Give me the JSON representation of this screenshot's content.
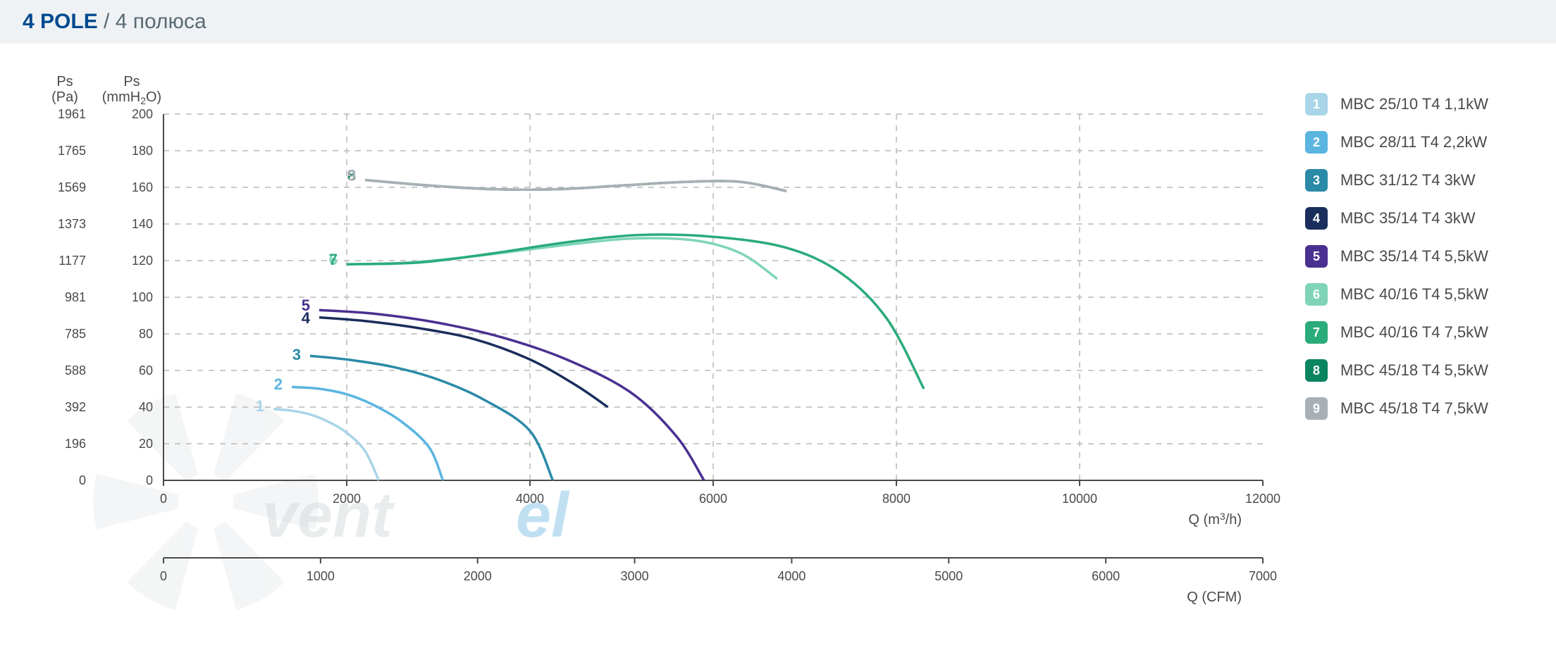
{
  "header": {
    "title_main": "4 POLE",
    "title_sub": " / 4 полюса"
  },
  "chart": {
    "type": "line",
    "background_color": "#ffffff",
    "grid_color": "#b8b8b8",
    "axis_color": "#4a4a4a",
    "label_fontsize": 18,
    "y_axis_left": {
      "title_line1": "Ps",
      "title_line2": "(Pa)",
      "ticks": [
        0,
        196,
        392,
        588,
        785,
        981,
        1177,
        1373,
        1569,
        1765,
        1961
      ]
    },
    "y_axis_right": {
      "title_line1": "Ps",
      "title_line2": "(mmH₂O)",
      "ticks": [
        0,
        20,
        40,
        60,
        80,
        100,
        120,
        140,
        160,
        180,
        200
      ]
    },
    "x_axis_primary": {
      "title": "Q (m³/h)",
      "min": 0,
      "max": 12000,
      "ticks": [
        0,
        2000,
        4000,
        6000,
        8000,
        10000,
        12000
      ]
    },
    "x_axis_secondary": {
      "title": "Q (CFM)",
      "min": 0,
      "max": 7000,
      "ticks": [
        0,
        1000,
        2000,
        3000,
        4000,
        5000,
        6000,
        7000
      ]
    },
    "ylim_mmh2o": [
      0,
      200
    ],
    "series": [
      {
        "id": 1,
        "label": "MBC 25/10 T4 1,1kW",
        "color": "#a8d5e8",
        "points_q_m3h": [
          1200,
          1400,
          1600,
          1800,
          2000,
          2200,
          2350
        ],
        "points_ps_mmh2o": [
          39,
          38,
          36,
          32,
          26,
          16,
          0
        ],
        "label_q": 1100,
        "label_ps": 40
      },
      {
        "id": 2,
        "label": "MBC 28/11 T4 2,2kW",
        "color": "#5ab5e0",
        "points_q_m3h": [
          1400,
          1700,
          2000,
          2300,
          2600,
          2900,
          3050
        ],
        "points_ps_mmh2o": [
          51,
          50,
          47,
          41,
          32,
          18,
          0
        ],
        "label_q": 1300,
        "label_ps": 52
      },
      {
        "id": 3,
        "label": "MBC 31/12 T4 3kW",
        "color": "#2a8aa8",
        "points_q_m3h": [
          1600,
          2000,
          2500,
          3000,
          3500,
          4000,
          4250
        ],
        "points_ps_mmh2o": [
          68,
          66,
          62,
          55,
          44,
          27,
          0
        ],
        "label_q": 1500,
        "label_ps": 68
      },
      {
        "id": 4,
        "label": "MBC 35/14 T4 3kW",
        "color": "#1a2e5c",
        "points_q_m3h": [
          1700,
          2200,
          2800,
          3400,
          4000,
          4500,
          4850
        ],
        "points_ps_mmh2o": [
          89,
          87,
          83,
          77,
          66,
          52,
          40
        ],
        "label_q": 1600,
        "label_ps": 88
      },
      {
        "id": 5,
        "label": "MBC 35/14 T4 5,5kW",
        "color": "#4a3090",
        "points_q_m3h": [
          1700,
          2300,
          3000,
          3700,
          4400,
          5100,
          5600,
          5900
        ],
        "points_ps_mmh2o": [
          93,
          91,
          86,
          78,
          66,
          48,
          24,
          0
        ],
        "label_q": 1600,
        "label_ps": 95
      },
      {
        "id": 6,
        "label": "MBC 40/16 T4 5,5kW",
        "color": "#7fd4b8",
        "points_q_m3h": [
          2000,
          2700,
          3500,
          4300,
          5100,
          5800,
          6300,
          6700
        ],
        "points_ps_mmh2o": [
          118,
          119,
          123,
          128,
          132,
          131,
          124,
          110
        ],
        "label_q": 1900,
        "label_ps": 120
      },
      {
        "id": 7,
        "label": "MBC 40/16 T4 7,5kW",
        "color": "#2aab7a",
        "points_q_m3h": [
          2000,
          2800,
          3600,
          4400,
          5200,
          6000,
          6800,
          7400,
          7900,
          8300
        ],
        "points_ps_mmh2o": [
          118,
          119,
          124,
          130,
          134,
          133,
          127,
          113,
          88,
          50
        ],
        "label_q": 1900,
        "label_ps": 120
      },
      {
        "id": 8,
        "label": "MBC 45/18 T4 5,5kW",
        "color": "#0a8560",
        "points_q_m3h": [
          2200,
          2900,
          3600,
          4300,
          5000,
          5700,
          6300,
          6800
        ],
        "points_ps_mmh2o": [
          164,
          161,
          159,
          159,
          161,
          163,
          163,
          158
        ],
        "label_q": 2100,
        "label_ps": 166
      },
      {
        "id": 9,
        "label": "MBC 45/18 T4 7,5kW",
        "color": "#a8b0b5",
        "points_q_m3h": [
          2200,
          2900,
          3600,
          4300,
          5000,
          5700,
          6300,
          6800
        ],
        "points_ps_mmh2o": [
          164,
          161,
          159,
          159,
          161,
          163,
          163,
          158
        ],
        "label_q": 2100,
        "label_ps": 166
      }
    ]
  },
  "watermark": {
    "text_part1": "vent",
    "text_part2": "el"
  }
}
